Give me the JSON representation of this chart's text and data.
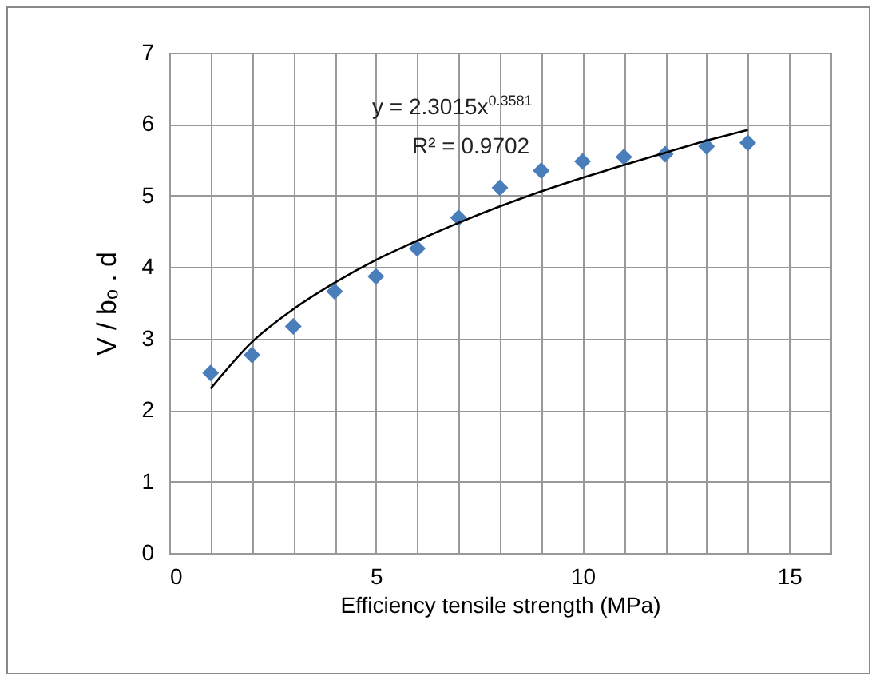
{
  "chart_data": {
    "type": "scatter",
    "xlabel": "Efficiency tensile strength (MPa)",
    "ylabel": "V / bₒ . d",
    "x": [
      1,
      2,
      3,
      4,
      5,
      6,
      7,
      8,
      9,
      10,
      11,
      12,
      13,
      14
    ],
    "series": [
      {
        "color": "#4a7ebb",
        "values": [
          2.52,
          2.77,
          3.17,
          3.66,
          3.87,
          4.26,
          4.69,
          5.11,
          5.35,
          5.48,
          5.54,
          5.58,
          5.69,
          5.74
        ]
      },
      {
        "type": "line",
        "marker": "none",
        "color": "#000000",
        "x": [
          1,
          2,
          3,
          4,
          5,
          6,
          7,
          8,
          9,
          10,
          11,
          12,
          13,
          14
        ],
        "values": [
          2.3,
          2.95,
          3.41,
          3.78,
          4.1,
          4.37,
          4.62,
          4.85,
          5.06,
          5.25,
          5.43,
          5.6,
          5.77,
          5.92
        ]
      }
    ],
    "xlim": [
      0,
      16
    ],
    "xticks": [
      0,
      {
        "value": 1,
        "label": null
      },
      {
        "value": 2,
        "label": null
      },
      {
        "value": 3,
        "label": null
      },
      {
        "value": 4,
        "label": null
      },
      5,
      {
        "value": 6,
        "label": null
      },
      {
        "value": 7,
        "label": null
      },
      {
        "value": 8,
        "label": null
      },
      {
        "value": 9,
        "label": null
      },
      10,
      {
        "value": 11,
        "label": null
      },
      {
        "value": 12,
        "label": null
      },
      {
        "value": 13,
        "label": null
      },
      {
        "value": 14,
        "label": null
      },
      15,
      {
        "value": 16,
        "label": null
      }
    ],
    "ylim": [
      0,
      7
    ],
    "yticks": [
      0,
      1,
      2,
      3,
      4,
      5,
      6,
      7
    ],
    "grid": true,
    "marker": "diamond",
    "annotations": [
      "y = 2.3015x$^{0.3581}$",
      "R² = 0.9702"
    ]
  }
}
